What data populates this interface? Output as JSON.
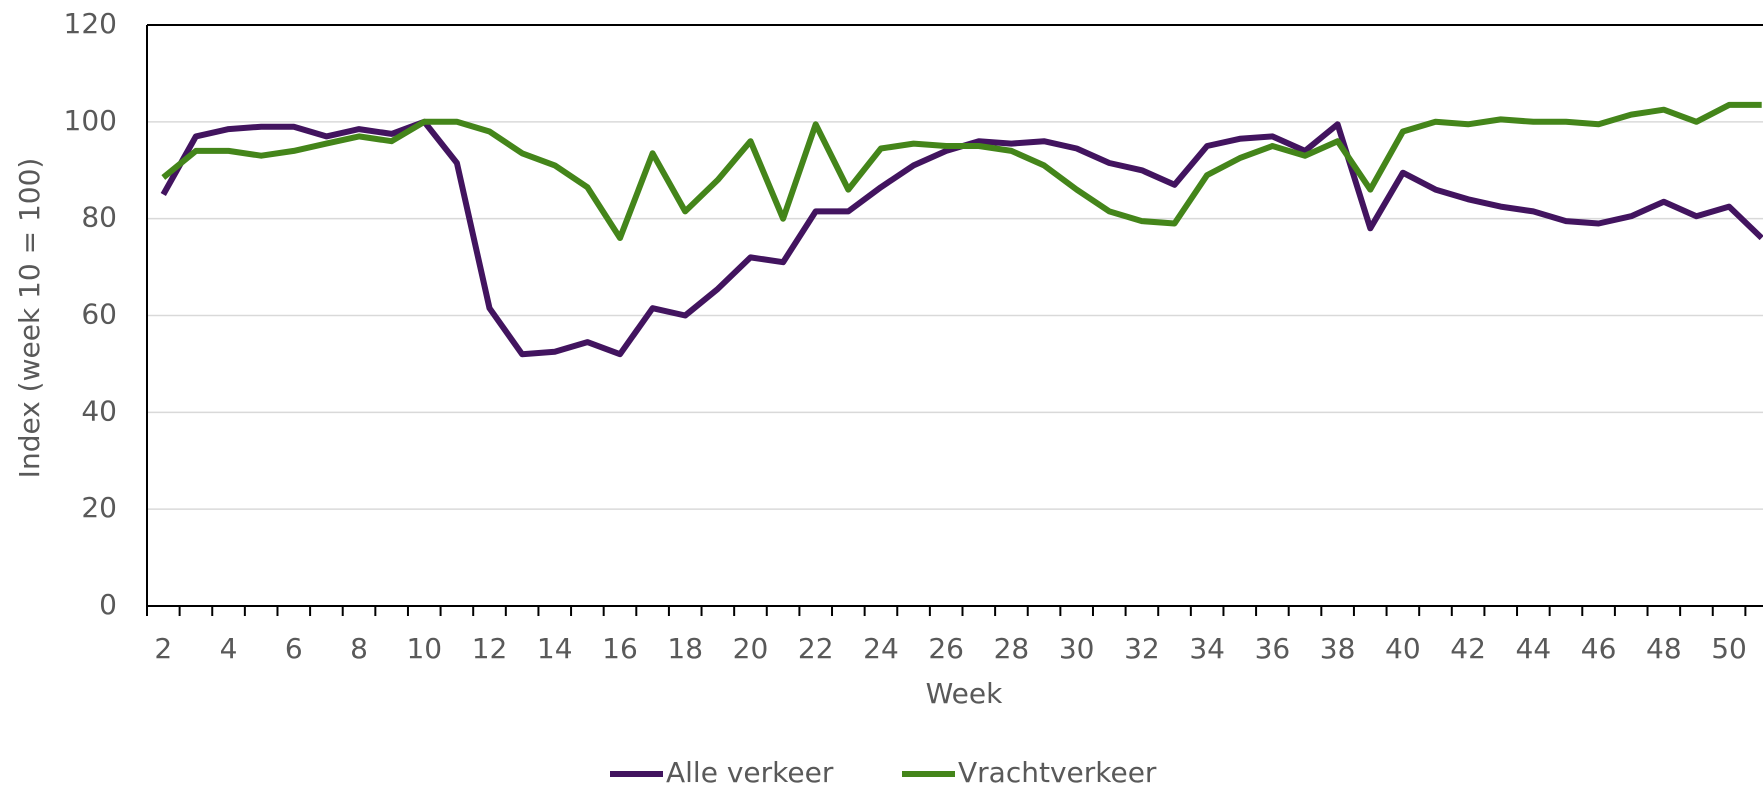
{
  "chart_data": {
    "type": "line",
    "categories": [
      "2",
      null,
      "4",
      null,
      "6",
      null,
      "8",
      null,
      "10",
      null,
      "12",
      null,
      "14",
      null,
      "16",
      null,
      "18",
      null,
      "20",
      null,
      "22",
      null,
      "24",
      null,
      "26",
      null,
      "28",
      null,
      "30",
      null,
      "32",
      null,
      "34",
      null,
      "36",
      null,
      "38",
      null,
      "40",
      null,
      "42",
      null,
      "44",
      null,
      "46",
      null,
      "48",
      null,
      "50",
      null
    ],
    "x_label": "Week",
    "y_label": "Index (week 10 = 100)",
    "ylim": [
      0,
      120
    ],
    "yticks": [
      0,
      20,
      40,
      60,
      80,
      100,
      120
    ],
    "grid": true,
    "legend": "bottom",
    "series": [
      {
        "name": "Alle verkeer",
        "color": "#42145f",
        "values": [
          85,
          97,
          98.5,
          99,
          99,
          97,
          98.5,
          97.5,
          100,
          91.5,
          61.5,
          52,
          52.5,
          54.5,
          52,
          61.5,
          60,
          65.5,
          72,
          71,
          81.5,
          81.5,
          86.5,
          91,
          94,
          96,
          95.5,
          96,
          94.5,
          91.5,
          90,
          87,
          95,
          96.5,
          97,
          94,
          99.5,
          78,
          89.5,
          86,
          84,
          82.5,
          81.5,
          79.5,
          79,
          80.5,
          83.5,
          80.5,
          82.5,
          76
        ]
      },
      {
        "name": "Vrachtverkeer",
        "color": "#44851a",
        "values": [
          88.5,
          94,
          94,
          93,
          94,
          95.5,
          97,
          96,
          100,
          100,
          98,
          93.5,
          91,
          86.5,
          76,
          93.5,
          81.5,
          88,
          96,
          80,
          99.5,
          86,
          94.5,
          95.5,
          95,
          95,
          94,
          91,
          86,
          81.5,
          79.5,
          79,
          89,
          92.5,
          95,
          93,
          96,
          86,
          98,
          100,
          99.5,
          100.5,
          100,
          100,
          99.5,
          101.5,
          102.5,
          100,
          103.5,
          103.5
        ]
      }
    ]
  }
}
